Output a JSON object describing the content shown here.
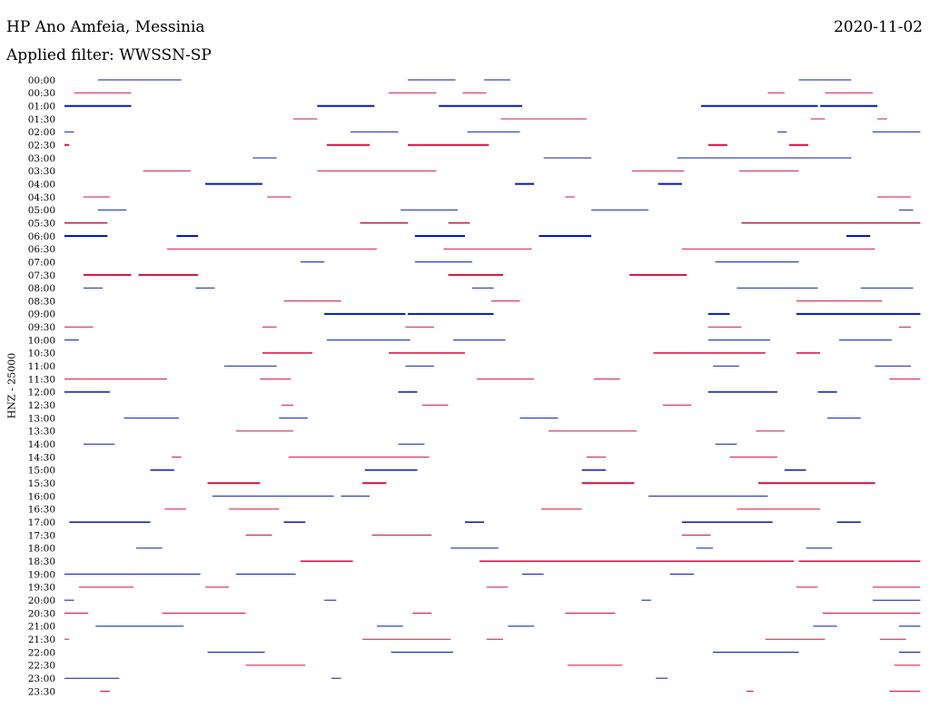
{
  "header": {
    "station": "HP Ano Amfeia, Messinia",
    "date": "2020-11-02",
    "filter": "Applied filter: WWSSN-SP"
  },
  "colors": {
    "blue": "#0018c4",
    "red": "#d4103c"
  },
  "chart_data": {
    "type": "line",
    "title": "HP Ano Amfeia, Messinia",
    "subtitle": "Applied filter: WWSSN-SP",
    "ylabel": "HNZ - 25000",
    "xlabel": "",
    "row_colors": [
      "blue",
      "red"
    ],
    "x_unit": "minutes past row start",
    "xlim": [
      0,
      30
    ],
    "rows": [
      {
        "label": "00:00",
        "segments": [
          [
            1.4,
            4.9,
            1
          ],
          [
            14.4,
            16.4,
            1
          ],
          [
            17.6,
            18.7,
            1
          ],
          [
            30.8,
            33.0,
            1
          ]
        ]
      },
      {
        "label": "00:30",
        "segments": [
          [
            0.4,
            2.8,
            1
          ],
          [
            13.6,
            15.6,
            1
          ],
          [
            16.7,
            17.7,
            1
          ],
          [
            29.5,
            30.2,
            1
          ],
          [
            31.9,
            33.9,
            1
          ]
        ]
      },
      {
        "label": "01:00",
        "segments": [
          [
            0,
            2.8,
            2
          ],
          [
            10.6,
            13.0,
            2
          ],
          [
            15.7,
            19.2,
            2
          ],
          [
            26.7,
            31.6,
            2
          ],
          [
            31.7,
            34.1,
            2
          ]
        ]
      },
      {
        "label": "01:30",
        "segments": [
          [
            9.6,
            10.6,
            1
          ],
          [
            18.3,
            21.9,
            1
          ],
          [
            31.3,
            31.9,
            1
          ],
          [
            34.1,
            34.5,
            1
          ]
        ]
      },
      {
        "label": "02:00",
        "segments": [
          [
            0,
            0.4,
            1
          ],
          [
            12.0,
            14.0,
            1
          ],
          [
            16.9,
            19.1,
            1
          ],
          [
            29.9,
            30.3,
            1
          ],
          [
            33.9,
            35.9,
            1
          ]
        ]
      },
      {
        "label": "02:30",
        "segments": [
          [
            0,
            0.2,
            2
          ],
          [
            11.0,
            12.8,
            2
          ],
          [
            14.4,
            17.8,
            2
          ],
          [
            27.0,
            27.8,
            2
          ],
          [
            30.4,
            31.2,
            2
          ]
        ]
      },
      {
        "label": "03:00",
        "segments": [
          [
            7.9,
            8.9,
            1
          ],
          [
            20.1,
            22.1,
            1
          ],
          [
            25.7,
            33.0,
            1
          ]
        ]
      },
      {
        "label": "03:30",
        "segments": [
          [
            3.3,
            5.3,
            1
          ],
          [
            10.6,
            15.6,
            1
          ],
          [
            23.8,
            26.0,
            1
          ],
          [
            28.3,
            30.8,
            1
          ]
        ]
      },
      {
        "label": "04:00",
        "segments": [
          [
            5.9,
            8.3,
            2
          ],
          [
            18.9,
            19.7,
            2
          ],
          [
            24.9,
            25.9,
            2
          ]
        ]
      },
      {
        "label": "04:30",
        "segments": [
          [
            0.8,
            1.9,
            1
          ],
          [
            8.5,
            9.5,
            1
          ],
          [
            21.0,
            21.4,
            1
          ],
          [
            34.1,
            35.5,
            1
          ]
        ]
      },
      {
        "label": "05:00",
        "segments": [
          [
            1.4,
            2.6,
            1
          ],
          [
            14.1,
            16.5,
            1
          ],
          [
            22.1,
            24.5,
            1
          ],
          [
            35.0,
            35.6,
            1
          ]
        ]
      },
      {
        "label": "05:30",
        "segments": [
          [
            0,
            1.8,
            1.5
          ],
          [
            12.4,
            14.4,
            1.5
          ],
          [
            16.1,
            17.0,
            1.5
          ],
          [
            28.4,
            34.1,
            1.5
          ],
          [
            34.1,
            35.9,
            1.5
          ]
        ]
      },
      {
        "label": "06:00",
        "segments": [
          [
            0,
            1.8,
            2
          ],
          [
            4.7,
            5.6,
            2
          ],
          [
            14.7,
            16.8,
            2
          ],
          [
            19.9,
            22.1,
            2
          ],
          [
            32.8,
            33.8,
            2
          ]
        ]
      },
      {
        "label": "06:30",
        "segments": [
          [
            4.3,
            13.1,
            1
          ],
          [
            15.9,
            19.6,
            1
          ],
          [
            25.9,
            34.0,
            1
          ]
        ]
      },
      {
        "label": "07:00",
        "segments": [
          [
            9.9,
            10.9,
            1
          ],
          [
            14.7,
            17.1,
            1
          ],
          [
            27.3,
            30.8,
            1
          ]
        ]
      },
      {
        "label": "07:30",
        "segments": [
          [
            0.8,
            2.8,
            2
          ],
          [
            3.1,
            5.6,
            2
          ],
          [
            16.1,
            18.4,
            2
          ],
          [
            23.7,
            26.1,
            2
          ]
        ]
      },
      {
        "label": "08:00",
        "segments": [
          [
            0.8,
            1.6,
            1
          ],
          [
            5.5,
            6.3,
            1
          ],
          [
            17.1,
            18.0,
            1
          ],
          [
            28.2,
            31.6,
            1
          ],
          [
            33.4,
            35.6,
            1
          ]
        ]
      },
      {
        "label": "08:30",
        "segments": [
          [
            9.2,
            11.6,
            1
          ],
          [
            17.9,
            19.1,
            1
          ],
          [
            30.7,
            34.3,
            1
          ]
        ]
      },
      {
        "label": "09:00",
        "segments": [
          [
            10.9,
            14.3,
            2
          ],
          [
            14.4,
            18.0,
            2
          ],
          [
            27.0,
            27.9,
            2
          ],
          [
            30.7,
            35.9,
            2
          ]
        ]
      },
      {
        "label": "09:30",
        "segments": [
          [
            0,
            1.2,
            1
          ],
          [
            8.3,
            8.9,
            1
          ],
          [
            14.3,
            15.5,
            1
          ],
          [
            27.0,
            28.4,
            1
          ],
          [
            35.0,
            35.5,
            1
          ]
        ]
      },
      {
        "label": "10:00",
        "segments": [
          [
            0,
            0.6,
            1
          ],
          [
            11.0,
            14.5,
            1
          ],
          [
            16.3,
            18.5,
            1
          ],
          [
            27.0,
            29.6,
            1
          ],
          [
            32.5,
            34.7,
            1
          ]
        ]
      },
      {
        "label": "10:30",
        "segments": [
          [
            8.3,
            10.4,
            1.5
          ],
          [
            13.6,
            16.8,
            1.5
          ],
          [
            24.7,
            29.4,
            1.5
          ],
          [
            30.7,
            31.7,
            1.5
          ]
        ]
      },
      {
        "label": "11:00",
        "segments": [
          [
            6.7,
            8.9,
            1
          ],
          [
            14.3,
            15.5,
            1
          ],
          [
            27.2,
            28.3,
            1
          ],
          [
            34.0,
            35.5,
            1
          ]
        ]
      },
      {
        "label": "11:30",
        "segments": [
          [
            0,
            4.3,
            1
          ],
          [
            8.2,
            9.5,
            1
          ],
          [
            17.3,
            19.7,
            1
          ],
          [
            22.2,
            23.3,
            1
          ],
          [
            34.6,
            35.9,
            1
          ]
        ]
      },
      {
        "label": "12:00",
        "segments": [
          [
            0,
            1.9,
            1.5
          ],
          [
            14.0,
            14.8,
            1.5
          ],
          [
            27.0,
            29.9,
            1.5
          ],
          [
            31.6,
            32.4,
            1.5
          ]
        ]
      },
      {
        "label": "12:30",
        "segments": [
          [
            9.1,
            9.6,
            1
          ],
          [
            15.0,
            16.1,
            1
          ],
          [
            25.1,
            26.3,
            1
          ]
        ]
      },
      {
        "label": "13:00",
        "segments": [
          [
            2.5,
            4.8,
            1
          ],
          [
            9.0,
            10.2,
            1
          ],
          [
            19.1,
            20.7,
            1
          ],
          [
            32.0,
            33.4,
            1
          ]
        ]
      },
      {
        "label": "13:30",
        "segments": [
          [
            7.2,
            9.6,
            1
          ],
          [
            20.3,
            24.0,
            1
          ],
          [
            29.0,
            30.2,
            1
          ]
        ]
      },
      {
        "label": "14:00",
        "segments": [
          [
            0.8,
            2.1,
            1
          ],
          [
            14.0,
            15.1,
            1
          ],
          [
            27.3,
            28.2,
            1
          ]
        ]
      },
      {
        "label": "14:30",
        "segments": [
          [
            4.5,
            4.9,
            1
          ],
          [
            9.4,
            15.3,
            1
          ],
          [
            21.9,
            22.7,
            1
          ],
          [
            27.9,
            29.9,
            1
          ]
        ]
      },
      {
        "label": "15:00",
        "segments": [
          [
            3.6,
            4.6,
            1.5
          ],
          [
            12.6,
            14.8,
            1.5
          ],
          [
            21.7,
            22.7,
            1.5
          ],
          [
            30.2,
            31.1,
            1.5
          ]
        ]
      },
      {
        "label": "15:30",
        "segments": [
          [
            6.0,
            8.2,
            2
          ],
          [
            12.5,
            13.5,
            2
          ],
          [
            21.7,
            23.9,
            2
          ],
          [
            29.1,
            34.0,
            2
          ]
        ]
      },
      {
        "label": "16:00",
        "segments": [
          [
            6.2,
            11.3,
            1
          ],
          [
            11.6,
            12.8,
            1
          ],
          [
            24.5,
            29.5,
            1
          ]
        ]
      },
      {
        "label": "16:30",
        "segments": [
          [
            4.2,
            5.1,
            1
          ],
          [
            6.9,
            9.0,
            1
          ],
          [
            20.0,
            21.7,
            1
          ],
          [
            28.2,
            31.7,
            1
          ]
        ]
      },
      {
        "label": "17:00",
        "segments": [
          [
            0.2,
            3.6,
            1.5
          ],
          [
            9.2,
            10.1,
            1.5
          ],
          [
            16.8,
            17.6,
            1.5
          ],
          [
            25.9,
            29.7,
            1.5
          ],
          [
            32.4,
            33.4,
            1.5
          ]
        ]
      },
      {
        "label": "17:30",
        "segments": [
          [
            7.6,
            8.7,
            1
          ],
          [
            12.9,
            15.4,
            1
          ],
          [
            25.9,
            27.1,
            1
          ]
        ]
      },
      {
        "label": "18:00",
        "segments": [
          [
            3.0,
            4.1,
            1
          ],
          [
            16.2,
            18.2,
            1
          ],
          [
            26.5,
            27.2,
            1
          ],
          [
            31.1,
            32.2,
            1
          ]
        ]
      },
      {
        "label": "18:30",
        "segments": [
          [
            9.9,
            12.1,
            1.5
          ],
          [
            17.4,
            30.6,
            1.5
          ],
          [
            30.8,
            35.9,
            1.5
          ]
        ]
      },
      {
        "label": "19:00",
        "segments": [
          [
            0,
            5.7,
            1
          ],
          [
            7.2,
            9.7,
            1
          ],
          [
            19.2,
            20.1,
            1
          ],
          [
            25.4,
            26.4,
            1
          ]
        ]
      },
      {
        "label": "19:30",
        "segments": [
          [
            0.6,
            2.9,
            1
          ],
          [
            5.9,
            6.9,
            1
          ],
          [
            17.7,
            18.6,
            1
          ],
          [
            30.7,
            31.6,
            1
          ],
          [
            33.9,
            35.9,
            1
          ]
        ]
      },
      {
        "label": "20:00",
        "segments": [
          [
            0,
            0.4,
            1
          ],
          [
            10.9,
            11.4,
            1
          ],
          [
            24.2,
            24.6,
            1
          ],
          [
            33.9,
            35.9,
            1
          ]
        ]
      },
      {
        "label": "20:30",
        "segments": [
          [
            0,
            1.0,
            1
          ],
          [
            4.1,
            7.6,
            1
          ],
          [
            14.6,
            15.4,
            1
          ],
          [
            21.0,
            23.1,
            1
          ],
          [
            31.8,
            35.9,
            1
          ]
        ]
      },
      {
        "label": "21:00",
        "segments": [
          [
            1.3,
            5.0,
            1
          ],
          [
            13.1,
            14.2,
            1
          ],
          [
            18.6,
            19.7,
            1
          ],
          [
            31.4,
            32.4,
            1
          ],
          [
            35.0,
            35.9,
            1
          ]
        ]
      },
      {
        "label": "21:30",
        "segments": [
          [
            0,
            0.2,
            1
          ],
          [
            12.5,
            16.2,
            1
          ],
          [
            17.7,
            18.4,
            1
          ],
          [
            29.4,
            31.9,
            1
          ],
          [
            34.2,
            35.3,
            1
          ]
        ]
      },
      {
        "label": "22:00",
        "segments": [
          [
            6.0,
            8.4,
            1
          ],
          [
            13.7,
            16.3,
            1
          ],
          [
            27.2,
            30.8,
            1
          ],
          [
            35.0,
            35.9,
            1
          ]
        ]
      },
      {
        "label": "22:30",
        "segments": [
          [
            7.6,
            10.1,
            1
          ],
          [
            21.1,
            23.4,
            1
          ],
          [
            34.8,
            35.9,
            1
          ]
        ]
      },
      {
        "label": "23:00",
        "segments": [
          [
            0,
            2.3,
            1
          ],
          [
            11.2,
            11.6,
            1
          ],
          [
            24.8,
            25.3,
            1
          ]
        ]
      },
      {
        "label": "23:30",
        "segments": [
          [
            1.5,
            1.9,
            1
          ],
          [
            28.6,
            28.9,
            1
          ],
          [
            34.6,
            35.9,
            1
          ]
        ]
      }
    ]
  }
}
